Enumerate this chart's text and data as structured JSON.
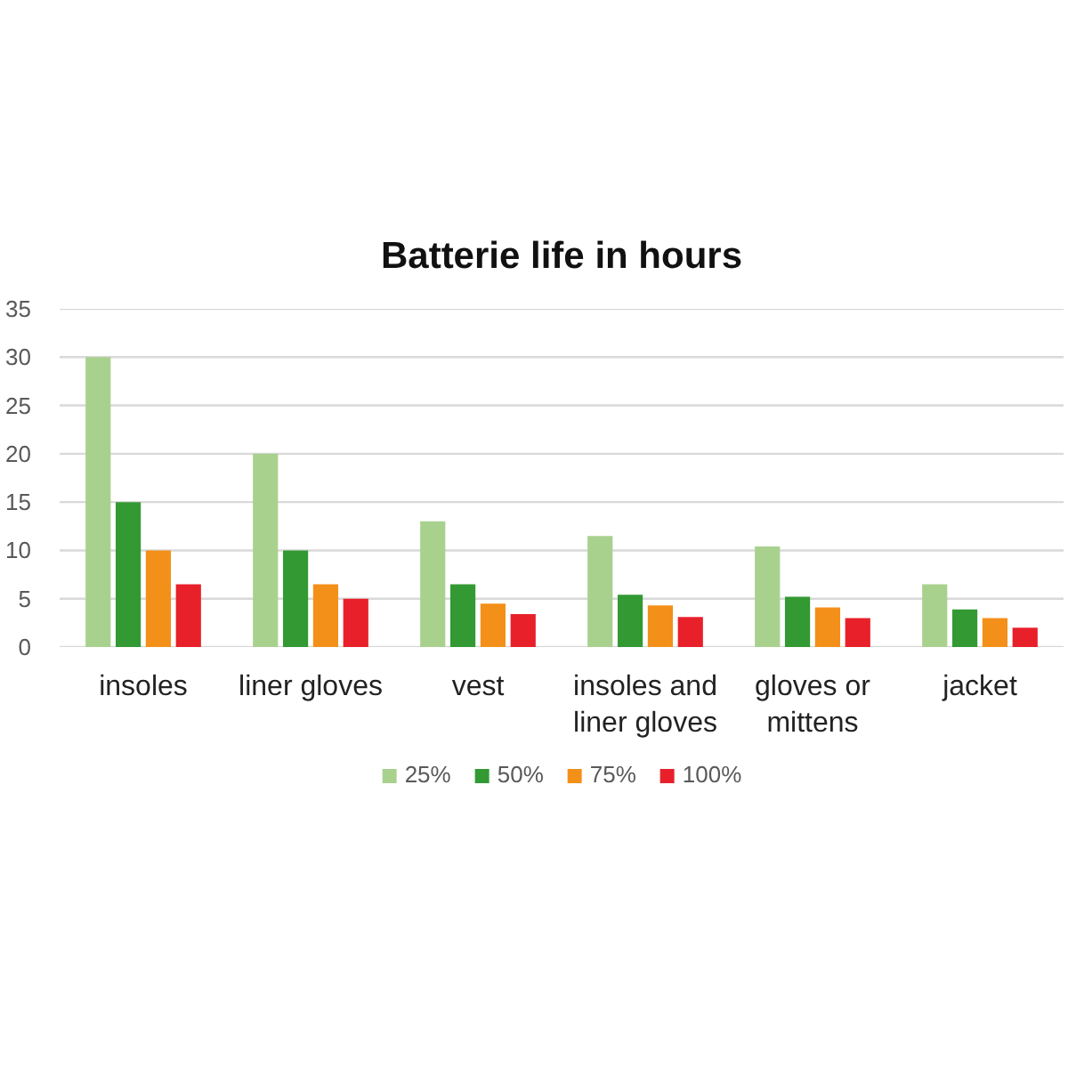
{
  "chart_data": {
    "type": "bar",
    "title": "Batterie life in hours",
    "categories": [
      "insoles",
      "liner gloves",
      "vest",
      "insoles and liner gloves",
      "gloves or mittens",
      "jacket"
    ],
    "series": [
      {
        "name": "25%",
        "color": "#a9d18e",
        "values": [
          30,
          20,
          13,
          11.5,
          10.4,
          6.5
        ]
      },
      {
        "name": "50%",
        "color": "#339933",
        "values": [
          15,
          10,
          6.5,
          5.4,
          5.2,
          3.9
        ]
      },
      {
        "name": "75%",
        "color": "#f39019",
        "values": [
          10,
          6.5,
          4.5,
          4.3,
          4.1,
          3
        ]
      },
      {
        "name": "100%",
        "color": "#e8202a",
        "values": [
          6.5,
          5,
          3.4,
          3.1,
          3,
          2
        ]
      }
    ],
    "ylim": [
      0,
      35
    ],
    "yticks": [
      0,
      5,
      10,
      15,
      20,
      25,
      30,
      35
    ],
    "grid": "y",
    "legend": "bottom"
  }
}
